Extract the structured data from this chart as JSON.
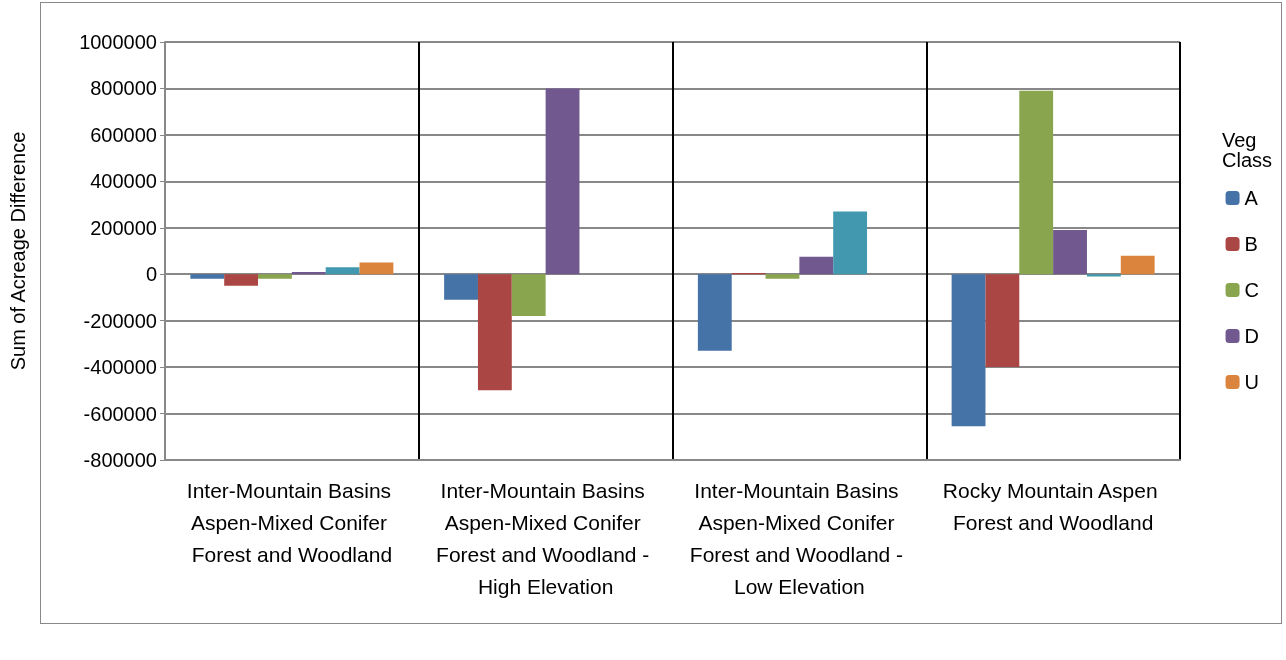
{
  "chart_data": {
    "type": "bar",
    "ylabel": "Sum of Acreage Difference",
    "legend_title": "Veg Class",
    "legend": "right",
    "grid": "y",
    "categories": [
      "Inter-Mountain Basins Aspen-Mixed Conifer Forest and Woodland",
      "Inter-Mountain Basins Aspen-Mixed Conifer Forest and Woodland - High Elevation",
      "Inter-Mountain Basins Aspen-Mixed Conifer Forest and Woodland - Low Elevation",
      "Rocky Mountain Aspen Forest and Woodland"
    ],
    "ylim": [
      -800000,
      1000000
    ],
    "yticks": [
      -800000,
      -600000,
      -400000,
      -200000,
      0,
      200000,
      400000,
      600000,
      800000,
      1000000
    ],
    "series": [
      {
        "name": "A",
        "color": "#4572a7",
        "values": [
          -20000,
          -110000,
          -330000,
          -655000
        ]
      },
      {
        "name": "B",
        "color": "#aa4643",
        "values": [
          -50000,
          -500000,
          5000,
          -400000
        ]
      },
      {
        "name": "C",
        "color": "#89a54e",
        "values": [
          -20000,
          -180000,
          -20000,
          790000
        ]
      },
      {
        "name": "D",
        "color": "#71588f",
        "values": [
          10000,
          800000,
          75000,
          190000
        ]
      },
      {
        "color": "#4198af",
        "values": [
          30000,
          null,
          270000,
          -10000
        ]
      },
      {
        "name": "U",
        "color": "#db843d",
        "values": [
          50000,
          null,
          null,
          80000
        ]
      }
    ]
  }
}
